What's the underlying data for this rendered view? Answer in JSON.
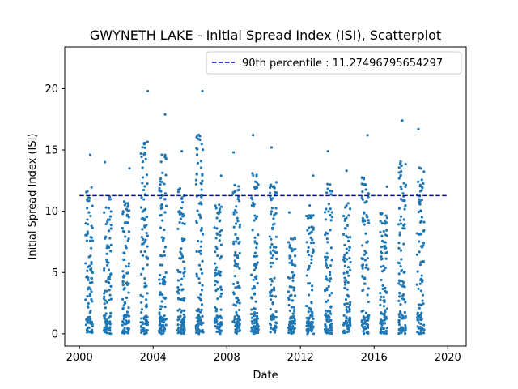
{
  "chart_data": {
    "type": "scatter",
    "title": "GWYNETH LAKE - Initial Spread Index (ISI), Scatterplot",
    "xlabel": "Date",
    "ylabel": "Initial Spread Index (ISI)",
    "xlim": [
      1999.2,
      2021.0
    ],
    "ylim": [
      -1.0,
      23.4
    ],
    "xticks": [
      2000,
      2004,
      2008,
      2012,
      2016,
      2020
    ],
    "xtick_labels": [
      "2000",
      "2004",
      "2008",
      "2012",
      "2016",
      "2020"
    ],
    "yticks": [
      0,
      5,
      10,
      15,
      20
    ],
    "ytick_labels": [
      "0",
      "5",
      "10",
      "15",
      "20"
    ],
    "legend_position": "top-right",
    "legend": [
      "90th percentile : 11.27496795654297"
    ],
    "percentile_90": 11.27496795654297,
    "percentile_line": {
      "x_start": 2000.0,
      "x_end": 2020.0
    },
    "series_color": "#1f77b4",
    "percentile_color": "#0000cc",
    "seasons": [
      {
        "year": 2000,
        "start": 2000.33,
        "end": 2000.72,
        "max": 14.6,
        "points": 95
      },
      {
        "year": 2001,
        "start": 2001.33,
        "end": 2001.72,
        "max": 14.0,
        "points": 100
      },
      {
        "year": 2002,
        "start": 2002.33,
        "end": 2002.72,
        "max": 13.5,
        "points": 105
      },
      {
        "year": 2003,
        "start": 2003.33,
        "end": 2003.72,
        "max": 19.8,
        "points": 110
      },
      {
        "year": 2004,
        "start": 2004.33,
        "end": 2004.72,
        "max": 17.9,
        "points": 110
      },
      {
        "year": 2005,
        "start": 2005.33,
        "end": 2005.72,
        "max": 14.9,
        "points": 105
      },
      {
        "year": 2006,
        "start": 2006.33,
        "end": 2006.72,
        "max": 19.8,
        "points": 110
      },
      {
        "year": 2007,
        "start": 2007.33,
        "end": 2007.72,
        "max": 12.9,
        "points": 100
      },
      {
        "year": 2008,
        "start": 2008.33,
        "end": 2008.72,
        "max": 14.8,
        "points": 100
      },
      {
        "year": 2009,
        "start": 2009.33,
        "end": 2009.72,
        "max": 16.2,
        "points": 105
      },
      {
        "year": 2010,
        "start": 2010.33,
        "end": 2010.72,
        "max": 15.2,
        "points": 100
      },
      {
        "year": 2011,
        "start": 2011.33,
        "end": 2011.72,
        "max": 9.9,
        "points": 95
      },
      {
        "year": 2012,
        "start": 2012.33,
        "end": 2012.72,
        "max": 12.9,
        "points": 100
      },
      {
        "year": 2013,
        "start": 2013.33,
        "end": 2013.72,
        "max": 14.9,
        "points": 105
      },
      {
        "year": 2014,
        "start": 2014.33,
        "end": 2014.72,
        "max": 13.3,
        "points": 100
      },
      {
        "year": 2015,
        "start": 2015.33,
        "end": 2015.72,
        "max": 16.2,
        "points": 105
      },
      {
        "year": 2016,
        "start": 2016.33,
        "end": 2016.72,
        "max": 12.0,
        "points": 95
      },
      {
        "year": 2017,
        "start": 2017.33,
        "end": 2017.72,
        "max": 17.4,
        "points": 105
      },
      {
        "year": 2018,
        "start": 2018.33,
        "end": 2018.72,
        "max": 16.7,
        "points": 100
      }
    ]
  }
}
